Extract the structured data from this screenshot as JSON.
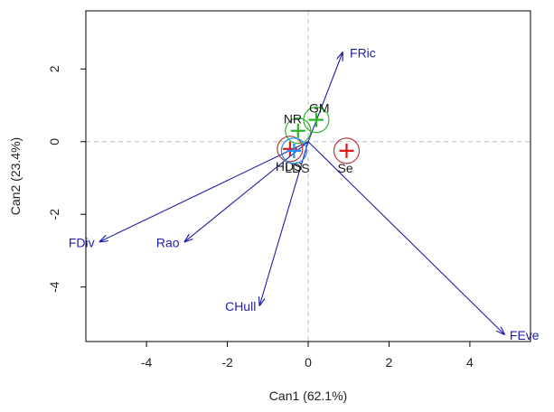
{
  "chart_data": {
    "type": "scatter",
    "title": "",
    "xlabel": "Can1 (62.1%)",
    "ylabel": "Can2 (23.4%)",
    "xlim": [
      -5.5,
      5.5
    ],
    "ylim": [
      -5.5,
      3.6
    ],
    "x_ticks": [
      -4,
      -2,
      0,
      2,
      4
    ],
    "y_ticks": [
      -4,
      -2,
      0,
      2
    ],
    "x_tick_labels": [
      "-4",
      "-2",
      "0",
      "2",
      "4"
    ],
    "y_tick_labels": [
      "-4",
      "-2",
      "0",
      "2"
    ],
    "reference_lines": {
      "x": 0,
      "y": 0,
      "style": "dashed"
    },
    "vector_origin": [
      0,
      0
    ],
    "vectors": [
      {
        "label": "FRic",
        "x": 0.85,
        "y": 2.45
      },
      {
        "label": "FDiv",
        "x": -5.15,
        "y": -2.75
      },
      {
        "label": "Rao",
        "x": -3.05,
        "y": -2.75
      },
      {
        "label": "CHull",
        "x": -1.2,
        "y": -4.5
      },
      {
        "label": "FEve",
        "x": 4.85,
        "y": -5.3
      }
    ],
    "groups": [
      {
        "label": "GM",
        "x": 0.2,
        "y": 0.6,
        "color": "#2bb52b"
      },
      {
        "label": "NR",
        "x": -0.25,
        "y": 0.3,
        "color": "#2bb52b"
      },
      {
        "label": "Se",
        "x": 0.95,
        "y": -0.25,
        "color": "#e01818"
      },
      {
        "label": "HDS",
        "x": -0.45,
        "y": -0.2,
        "color": "#e01818"
      },
      {
        "label": "LDS",
        "x": -0.35,
        "y": -0.25,
        "color": "#1e90ff"
      }
    ],
    "colors": {
      "vectors": "#1f1fa8",
      "circle": "#b23a3a",
      "cross_red": "#e01818",
      "cross_green": "#2bb52b",
      "cross_blue": "#1e90ff"
    }
  }
}
